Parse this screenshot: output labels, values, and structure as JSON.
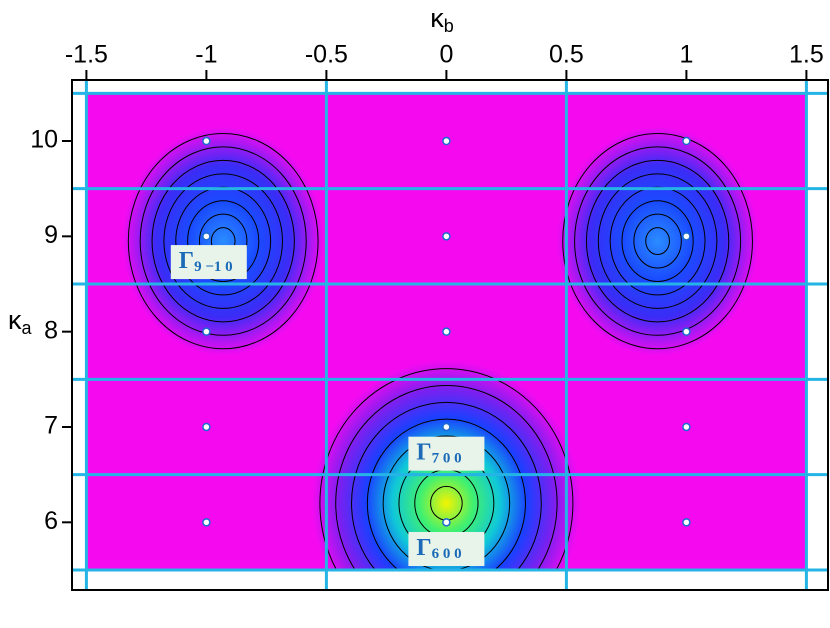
{
  "chart_data": {
    "type": "contour",
    "x_label": "κ",
    "x_label_sub": "b",
    "y_label": "κ",
    "y_label_sub": "a",
    "xlim": [
      -1.56,
      1.59
    ],
    "ylim": [
      5.29,
      10.64
    ],
    "xticks": [
      -1.5,
      -1,
      -0.5,
      0,
      0.5,
      1,
      1.5
    ],
    "yticks": [
      6,
      7,
      8,
      9,
      10
    ],
    "background_color": "#f50af0",
    "field_x": [
      -1.5,
      1.5
    ],
    "field_y": [
      5.5,
      10.5
    ],
    "cell_edges_x": [
      -1.5,
      -0.5,
      0.5,
      1.5
    ],
    "cell_edges_y": [
      5.5,
      6.5,
      7.5,
      8.5,
      9.5,
      10.5
    ],
    "cell_edge_color": "#25b4e6",
    "peaks": [
      {
        "x": -0.93,
        "y": 8.95,
        "rx": 0.42,
        "ry": 1.2,
        "colors": [
          "#2a8cff",
          "#1a4cff",
          "#3a2cf6",
          "#f50af0"
        ]
      },
      {
        "x": 0.88,
        "y": 8.95,
        "rx": 0.42,
        "ry": 1.2,
        "colors": [
          "#2a8cff",
          "#1a4cff",
          "#3a2cf6",
          "#f50af0"
        ]
      },
      {
        "x": 0,
        "y": 6.2,
        "rx": 0.56,
        "ry": 1.5,
        "colors": [
          "#f4f400",
          "#40f070",
          "#10c8d8",
          "#1a40ff",
          "#7a20f0",
          "#f50af0"
        ]
      }
    ],
    "points": {
      "x": [
        -1,
        -1,
        -1,
        -1,
        -1,
        0,
        0,
        0,
        0,
        0,
        1,
        1,
        1,
        1,
        1
      ],
      "y": [
        6,
        7,
        8,
        9,
        10,
        6,
        7,
        8,
        9,
        10,
        6,
        7,
        8,
        9,
        10
      ]
    },
    "annotations": [
      {
        "text": "Γ",
        "sub": "9 −1 0",
        "x": -0.99,
        "y": 8.73
      },
      {
        "text": "Γ",
        "sub": "7 0 0",
        "x": 0,
        "y": 6.72
      },
      {
        "text": "Γ",
        "sub": "6 0 0",
        "x": 0,
        "y": 5.72
      }
    ]
  }
}
